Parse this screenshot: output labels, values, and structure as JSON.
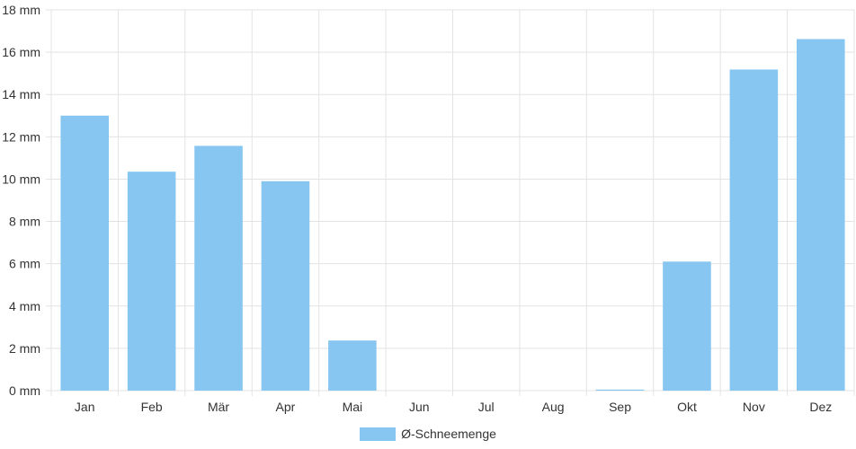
{
  "chart_data": {
    "type": "bar",
    "categories": [
      "Jan",
      "Feb",
      "Mär",
      "Apr",
      "Mai",
      "Jun",
      "Jul",
      "Aug",
      "Sep",
      "Okt",
      "Nov",
      "Dez"
    ],
    "series": [
      {
        "name": "Ø-Schneemenge",
        "values": [
          13.0,
          10.35,
          11.57,
          9.9,
          2.37,
          0,
          0,
          0,
          0.05,
          6.1,
          15.18,
          16.62
        ],
        "color": "#87c6f1"
      }
    ],
    "ylim": [
      0,
      18
    ],
    "y_ticks": [
      "0 mm",
      "2 mm",
      "4 mm",
      "6 mm",
      "8 mm",
      "10 mm",
      "12 mm",
      "14 mm",
      "16 mm",
      "18 mm"
    ],
    "grid": true,
    "legend_position": "bottom-center"
  }
}
